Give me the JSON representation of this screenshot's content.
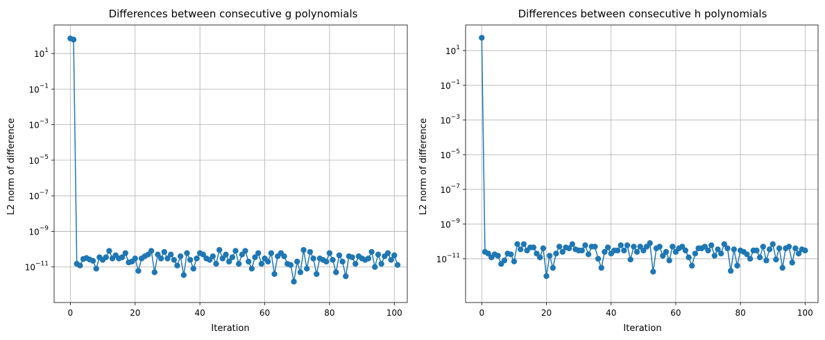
{
  "chart_data": [
    {
      "type": "line",
      "title": "Differences between consecutive g polynomials",
      "xlabel": "Iteration",
      "ylabel": "L2 norm of difference",
      "yscale": "log",
      "xlim": [
        -5,
        104
      ],
      "ylim": [
        1e-13,
        400
      ],
      "xticks": [
        0,
        20,
        40,
        60,
        80,
        100
      ],
      "yticks": [
        {
          "exp": 1
        },
        {
          "exp": -1
        },
        {
          "exp": -3
        },
        {
          "exp": -5
        },
        {
          "exp": -7
        },
        {
          "exp": -9
        },
        {
          "exp": -11
        }
      ],
      "grid": true,
      "marker": "circle",
      "color": "#1f77b4",
      "series": [
        {
          "x_start": 0,
          "values": [
            70,
            60,
            1.5e-11,
            1.2e-11,
            2.8e-11,
            3.2e-11,
            2.6e-11,
            2.2e-11,
            8e-12,
            3.5e-11,
            2.5e-11,
            3.5e-11,
            8e-11,
            3e-11,
            4.5e-11,
            3e-11,
            3.5e-11,
            6e-11,
            1.8e-11,
            2e-11,
            3e-11,
            6e-12,
            3e-11,
            4e-11,
            5e-11,
            8e-11,
            5e-12,
            5e-11,
            3e-11,
            7e-11,
            3e-11,
            5e-11,
            2.5e-11,
            1.2e-11,
            4e-11,
            3.5e-12,
            6e-11,
            2.5e-11,
            8e-12,
            3e-11,
            6e-11,
            5e-11,
            3e-11,
            2.5e-11,
            4e-11,
            1.5e-11,
            9e-11,
            3e-11,
            5e-11,
            2e-11,
            3.5e-11,
            8e-11,
            1.5e-11,
            5e-11,
            8e-11,
            2e-11,
            8e-12,
            3.5e-11,
            6e-11,
            1.5e-11,
            3e-11,
            2e-11,
            6e-11,
            4e-12,
            4e-11,
            6e-11,
            4e-11,
            1.5e-11,
            1.3e-11,
            1.5e-12,
            2e-11,
            5e-12,
            9e-11,
            8e-12,
            7e-11,
            3e-11,
            4e-12,
            3e-11,
            2.5e-11,
            2e-11,
            6e-11,
            2.5e-11,
            5e-12,
            4.5e-11,
            2e-11,
            3e-12,
            4e-11,
            3.5e-11,
            1.5e-11,
            4e-11,
            3e-11,
            2.5e-11,
            3e-11,
            7e-11,
            1e-11,
            5e-11,
            1.5e-11,
            4e-11,
            6e-11,
            2.5e-11,
            4.5e-11,
            1.3e-11
          ]
        }
      ]
    },
    {
      "type": "line",
      "title": "Differences between consecutive h polynomials",
      "xlabel": "Iteration",
      "ylabel": "L2 norm of difference",
      "yscale": "log",
      "xlim": [
        -5,
        104
      ],
      "ylim": [
        3e-14,
        300
      ],
      "xticks": [
        0,
        20,
        40,
        60,
        80,
        100
      ],
      "yticks": [
        {
          "exp": 1
        },
        {
          "exp": -1
        },
        {
          "exp": -3
        },
        {
          "exp": -5
        },
        {
          "exp": -7
        },
        {
          "exp": -9
        },
        {
          "exp": -11
        }
      ],
      "grid": true,
      "marker": "circle",
      "color": "#1f77b4",
      "series": [
        {
          "x_start": 0,
          "values": [
            55,
            2.5e-11,
            2e-11,
            1.2e-11,
            1.8e-11,
            1.5e-11,
            5e-12,
            8e-12,
            2e-11,
            1.8e-11,
            7e-12,
            7e-11,
            3.5e-11,
            7e-11,
            3e-11,
            4.5e-11,
            4.5e-11,
            2e-11,
            1.2e-11,
            4e-11,
            1e-12,
            1.5e-11,
            3e-12,
            2e-11,
            5e-11,
            2.5e-11,
            4.5e-11,
            4e-11,
            7e-11,
            3.5e-11,
            3e-11,
            3e-11,
            6e-11,
            1.8e-11,
            5e-11,
            5e-11,
            1e-11,
            3e-12,
            2.5e-11,
            4.5e-11,
            2e-11,
            3e-11,
            3e-11,
            6e-11,
            3e-11,
            6e-11,
            9e-12,
            5e-11,
            2.5e-11,
            5e-11,
            3e-11,
            5e-11,
            8e-11,
            1.8e-12,
            4e-11,
            5e-11,
            1.5e-11,
            2.5e-11,
            8e-12,
            5e-11,
            2.5e-11,
            4e-11,
            5e-11,
            3e-11,
            1.2e-11,
            4e-12,
            2e-11,
            4e-11,
            4e-11,
            5e-11,
            3e-11,
            6e-11,
            1.5e-11,
            3.5e-11,
            2e-11,
            7e-11,
            4e-11,
            2e-12,
            3.5e-11,
            4e-12,
            3e-11,
            2.5e-11,
            1.8e-11,
            1e-11,
            3e-11,
            3e-11,
            1.2e-11,
            5e-11,
            8e-12,
            3.5e-11,
            7e-11,
            9e-12,
            4e-11,
            3e-12,
            4e-11,
            5e-11,
            6e-12,
            4e-11,
            2e-11,
            3.5e-11,
            3e-11
          ]
        }
      ]
    }
  ]
}
